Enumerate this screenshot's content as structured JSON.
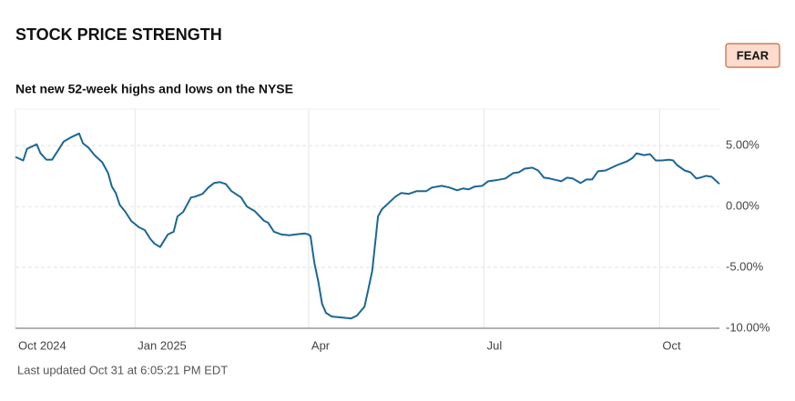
{
  "chart_data": {
    "type": "line",
    "title": "STOCK PRICE STRENGTH",
    "badge": "FEAR",
    "subtitle": "Net new 52-week highs and lows on the NYSE",
    "footnote": "Last updated Oct 31 at 6:05:21 PM EDT",
    "color": "#1b6796",
    "grid": true,
    "xlim": [
      0,
      365
    ],
    "xticks": [
      {
        "value": 0,
        "label": "Oct 2024"
      },
      {
        "value": 62,
        "label": "Jan 2025"
      },
      {
        "value": 152,
        "label": "Apr"
      },
      {
        "value": 243,
        "label": "Jul"
      },
      {
        "value": 334,
        "label": "Oct"
      }
    ],
    "ylim": [
      -10,
      8
    ],
    "yticks": [
      {
        "value": 5,
        "label": "5.00%"
      },
      {
        "value": 0,
        "label": "0.00%"
      },
      {
        "value": -5,
        "label": "-5.00%"
      },
      {
        "value": -10,
        "label": "-10.00%"
      }
    ],
    "x": [
      0,
      4,
      6,
      11,
      13,
      16,
      19,
      22,
      25,
      29,
      33,
      35,
      38,
      41,
      45,
      48,
      50,
      52,
      54,
      57,
      60,
      64,
      67,
      70,
      72,
      75,
      77,
      79,
      82,
      84,
      87,
      91,
      93,
      97,
      100,
      103,
      106,
      109,
      112,
      117,
      120,
      124,
      129,
      131,
      134,
      138,
      142,
      145,
      150,
      152,
      153,
      155,
      157,
      159,
      161,
      164,
      169,
      174,
      177,
      181,
      183,
      185,
      188,
      190,
      194,
      197,
      200,
      204,
      208,
      213,
      216,
      221,
      225,
      229,
      232,
      235,
      238,
      242,
      245,
      249,
      254,
      258,
      261,
      264,
      268,
      271,
      274,
      277,
      281,
      283,
      286,
      289,
      293,
      296,
      299,
      302,
      306,
      308,
      312,
      317,
      320,
      322,
      326,
      329,
      332,
      335,
      339,
      341,
      343,
      347,
      350,
      353,
      355,
      358,
      361,
      365
    ],
    "values": [
      4.07,
      3.78,
      4.74,
      5.11,
      4.37,
      3.85,
      3.85,
      4.59,
      5.33,
      5.7,
      6.0,
      5.19,
      4.81,
      4.22,
      3.63,
      2.74,
      1.63,
      1.11,
      0.15,
      -0.44,
      -1.19,
      -1.7,
      -1.93,
      -2.67,
      -3.04,
      -3.33,
      -2.81,
      -2.3,
      -2.07,
      -0.81,
      -0.44,
      0.74,
      0.81,
      1.04,
      1.56,
      1.93,
      2.0,
      1.85,
      1.26,
      0.74,
      0.0,
      -0.37,
      -1.19,
      -1.33,
      -2.07,
      -2.3,
      -2.37,
      -2.3,
      -2.22,
      -2.3,
      -2.44,
      -4.67,
      -6.15,
      -8.0,
      -8.74,
      -9.04,
      -9.11,
      -9.19,
      -8.96,
      -8.22,
      -6.74,
      -5.26,
      -0.81,
      -0.22,
      0.37,
      0.81,
      1.11,
      1.04,
      1.26,
      1.26,
      1.56,
      1.7,
      1.56,
      1.33,
      1.48,
      1.41,
      1.63,
      1.7,
      2.07,
      2.15,
      2.3,
      2.74,
      2.81,
      3.11,
      3.19,
      2.96,
      2.37,
      2.3,
      2.15,
      2.07,
      2.37,
      2.3,
      1.93,
      2.22,
      2.22,
      2.89,
      2.96,
      3.11,
      3.41,
      3.7,
      4.0,
      4.37,
      4.22,
      4.3,
      3.78,
      3.78,
      3.85,
      3.78,
      3.41,
      2.96,
      2.81,
      2.3,
      2.37,
      2.52,
      2.44,
      1.85
    ]
  }
}
